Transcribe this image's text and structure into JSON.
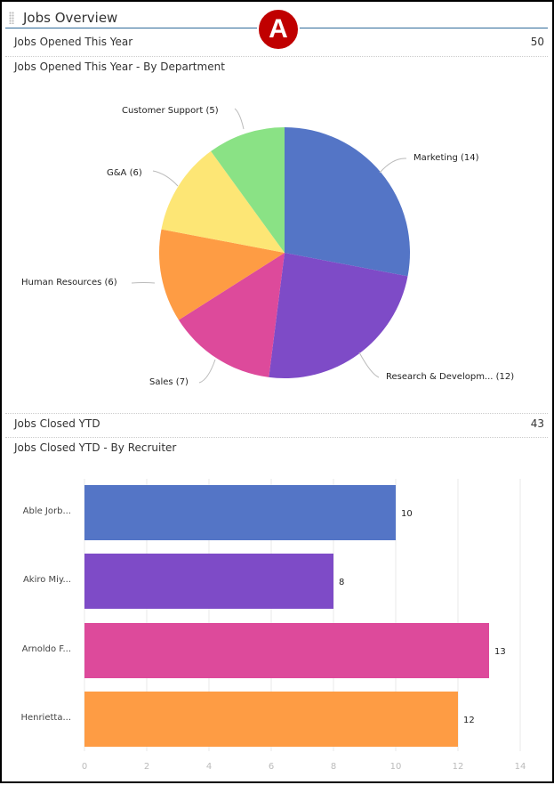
{
  "header": {
    "title": "Jobs Overview",
    "badge": "A"
  },
  "opened": {
    "label": "Jobs Opened This Year",
    "value": "50",
    "chart_title": "Jobs Opened This Year - By Department"
  },
  "closed": {
    "label": "Jobs Closed YTD",
    "value": "43",
    "chart_title": "Jobs Closed YTD - By Recruiter"
  },
  "chart_data": [
    {
      "type": "pie",
      "categories": [
        "Marketing",
        "Research & Developm...",
        "Sales",
        "Human Resources",
        "G&A",
        "Customer Support"
      ],
      "values": [
        14,
        12,
        7,
        6,
        6,
        5
      ],
      "labels": [
        "Marketing (14)",
        "Research & Developm... (12)",
        "Sales (7)",
        "Human Resources (6)",
        "G&A (6)",
        "Customer Support (5)"
      ],
      "colors": [
        "#5475c6",
        "#7e4bc7",
        "#dd4a9b",
        "#fe9c44",
        "#fde675",
        "#8ae285"
      ]
    },
    {
      "type": "bar",
      "orientation": "horizontal",
      "categories": [
        "Able Jorb...",
        "Akiro Miy...",
        "Arnoldo F...",
        "Henrietta..."
      ],
      "values": [
        10,
        8,
        13,
        12
      ],
      "xlim": [
        0,
        14
      ],
      "xticks": [
        "0",
        "2",
        "4",
        "6",
        "8",
        "10",
        "12",
        "14"
      ],
      "grid": true,
      "colors": [
        "#5475c6",
        "#7e4bc7",
        "#dd4a9b",
        "#fe9c44"
      ]
    }
  ]
}
